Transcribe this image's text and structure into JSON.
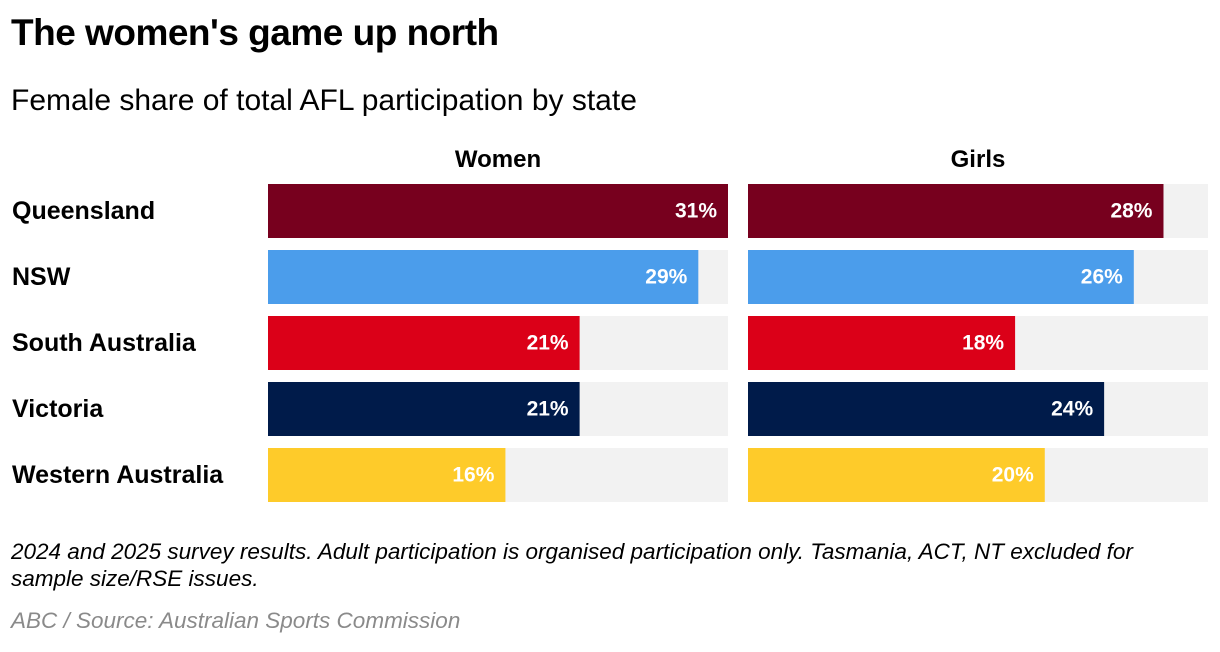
{
  "title": "The women's game up north",
  "subtitle": "Female share of total AFL participation by state",
  "footnote": "2024 and 2025 survey results. Adult participation is organised participation only. Tasmania, ACT, NT excluded for sample size/RSE issues.",
  "credit": "ABC / Source: Australian Sports Commission",
  "colors": {
    "track": "#f2f2f2",
    "label_text": "#ffffff",
    "states": [
      "#77001e",
      "#4b9deb",
      "#db0018",
      "#001b4a",
      "#fecb2a"
    ]
  },
  "chart_data": {
    "type": "bar",
    "orientation": "horizontal",
    "categories": [
      "Queensland",
      "NSW",
      "South Australia",
      "Victoria",
      "Western Australia"
    ],
    "series": [
      {
        "name": "Women",
        "values": [
          31,
          29,
          21,
          21,
          16
        ],
        "labels": [
          "31%",
          "29%",
          "21%",
          "21%",
          "16%"
        ]
      },
      {
        "name": "Girls",
        "values": [
          28,
          26,
          18,
          24,
          20
        ],
        "labels": [
          "28%",
          "26%",
          "18%",
          "24%",
          "20%"
        ]
      }
    ],
    "xlim": [
      0,
      31
    ],
    "unit": "%",
    "grid": false,
    "legend": "none"
  }
}
